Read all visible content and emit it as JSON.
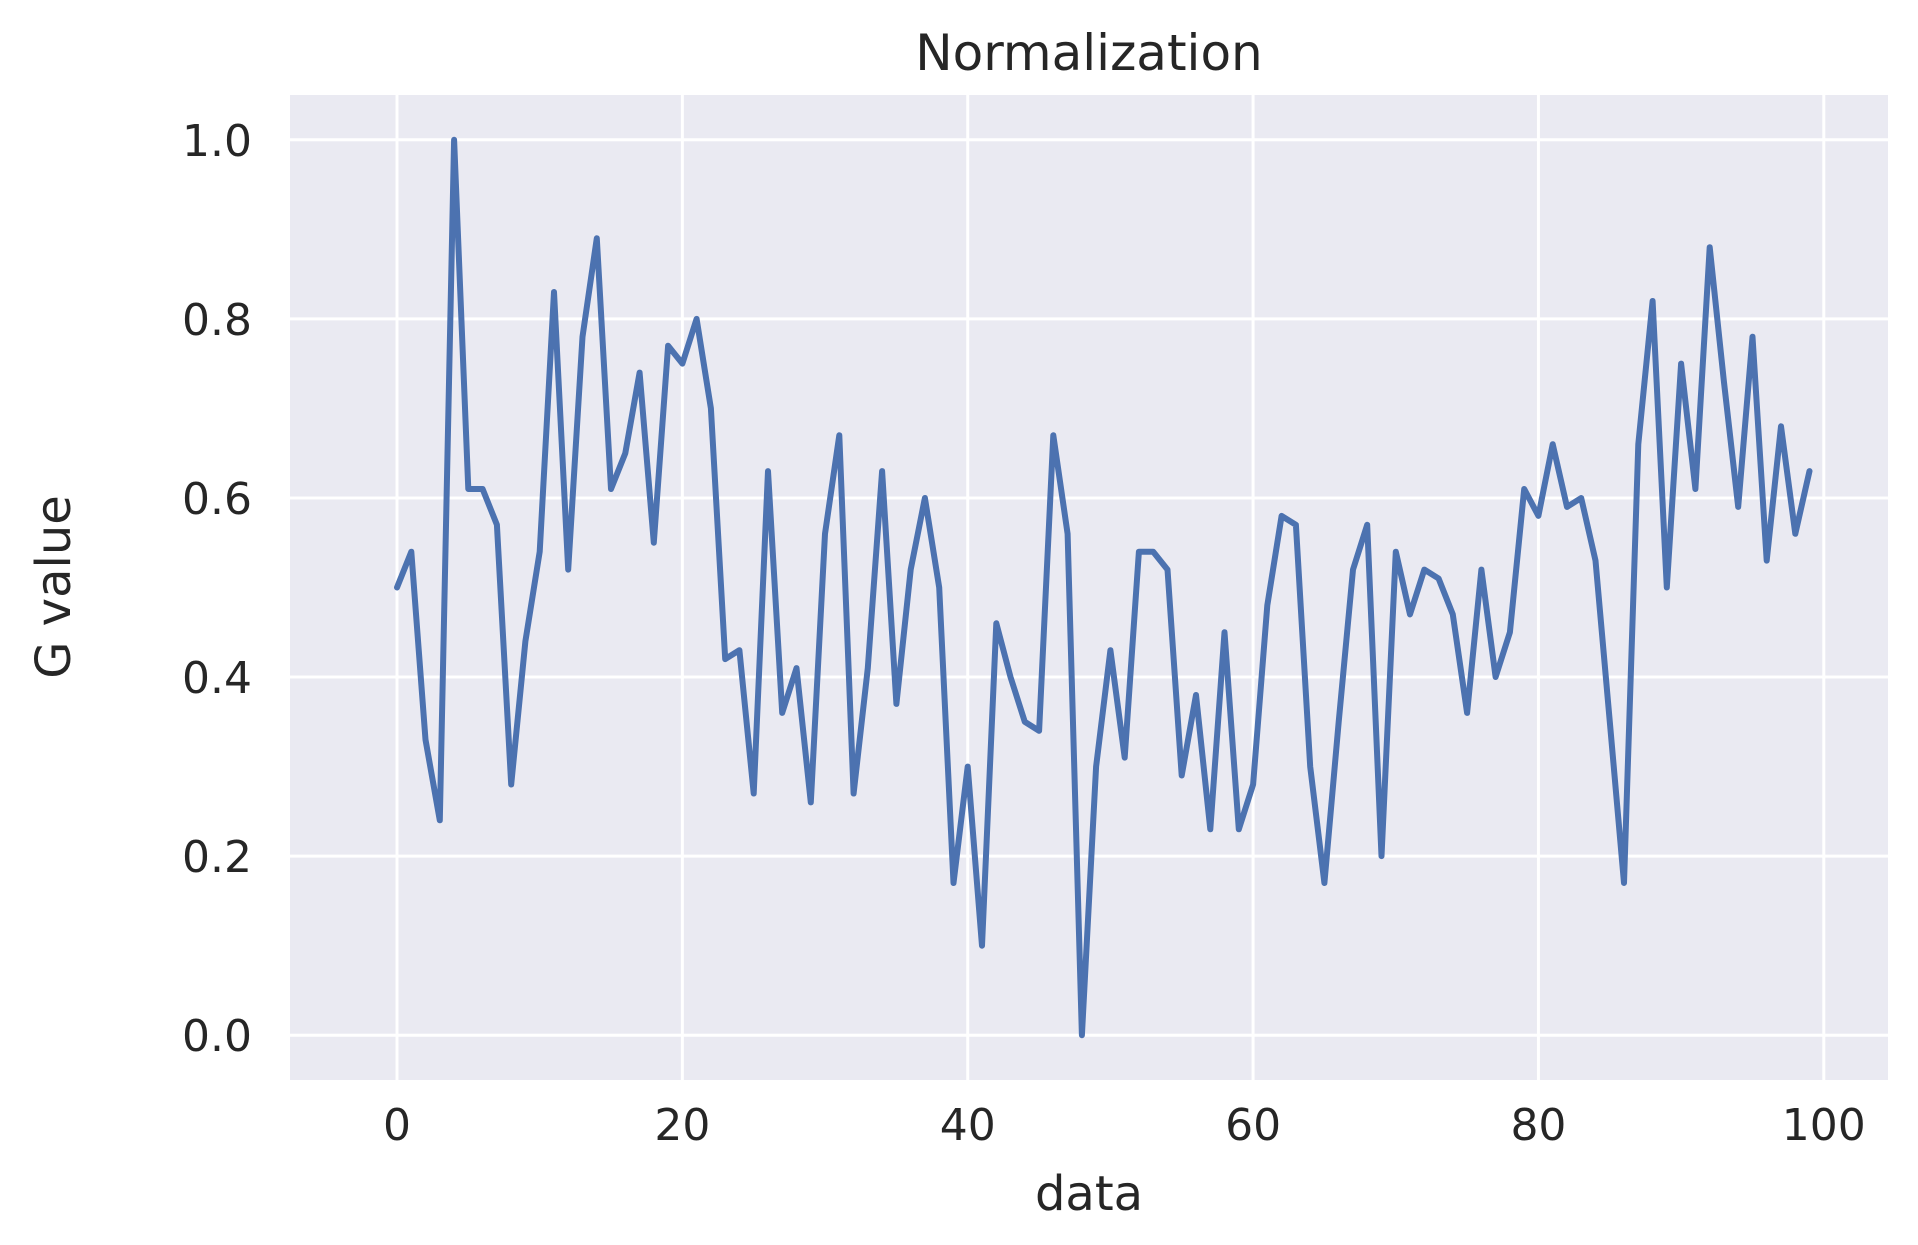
{
  "chart_data": {
    "type": "line",
    "title": "Normalization",
    "xlabel": "data",
    "ylabel": "G value",
    "xlim": [
      -7.5,
      104.5
    ],
    "ylim": [
      -0.05,
      1.05
    ],
    "xticks": [
      0,
      20,
      40,
      60,
      80,
      100
    ],
    "xtick_labels": [
      "0",
      "20",
      "40",
      "60",
      "80",
      "100"
    ],
    "yticks": [
      0.0,
      0.2,
      0.4,
      0.6,
      0.8,
      1.0
    ],
    "ytick_labels": [
      "0.0",
      "0.2",
      "0.4",
      "0.6",
      "0.8",
      "1.0"
    ],
    "grid": true,
    "background": "#eaeaf2",
    "grid_color": "#ffffff",
    "series": [
      {
        "color": "#4c72b0",
        "x": [
          0,
          1,
          2,
          3,
          4,
          5,
          6,
          7,
          8,
          9,
          10,
          11,
          12,
          13,
          14,
          15,
          16,
          17,
          18,
          19,
          20,
          21,
          22,
          23,
          24,
          25,
          26,
          27,
          28,
          29,
          30,
          31,
          32,
          33,
          34,
          35,
          36,
          37,
          38,
          39,
          40,
          41,
          42,
          43,
          44,
          45,
          46,
          47,
          48,
          49,
          50,
          51,
          52,
          53,
          54,
          55,
          56,
          57,
          58,
          59,
          60,
          61,
          62,
          63,
          64,
          65,
          66,
          67,
          68,
          69,
          70,
          71,
          72,
          73,
          74,
          75,
          76,
          77,
          78,
          79,
          80,
          81,
          82,
          83,
          84,
          85,
          86,
          87,
          88,
          89,
          90,
          91,
          92,
          93,
          94,
          95,
          96,
          97,
          98,
          99
        ],
        "values": [
          0.5,
          0.54,
          0.33,
          0.24,
          1.0,
          0.61,
          0.61,
          0.57,
          0.28,
          0.44,
          0.54,
          0.83,
          0.52,
          0.78,
          0.89,
          0.61,
          0.65,
          0.74,
          0.55,
          0.77,
          0.75,
          0.8,
          0.7,
          0.42,
          0.43,
          0.27,
          0.63,
          0.36,
          0.41,
          0.26,
          0.56,
          0.67,
          0.27,
          0.41,
          0.63,
          0.37,
          0.52,
          0.6,
          0.5,
          0.17,
          0.3,
          0.1,
          0.46,
          0.4,
          0.35,
          0.34,
          0.67,
          0.56,
          0.0,
          0.3,
          0.43,
          0.31,
          0.54,
          0.54,
          0.52,
          0.29,
          0.38,
          0.23,
          0.45,
          0.23,
          0.28,
          0.48,
          0.58,
          0.57,
          0.3,
          0.17,
          0.35,
          0.52,
          0.57,
          0.2,
          0.54,
          0.47,
          0.52,
          0.51,
          0.47,
          0.36,
          0.52,
          0.4,
          0.45,
          0.61,
          0.58,
          0.66,
          0.59,
          0.6,
          0.53,
          0.35,
          0.17,
          0.66,
          0.82,
          0.5,
          0.75,
          0.61,
          0.88,
          0.73,
          0.59,
          0.78,
          0.53,
          0.68,
          0.56,
          0.63
        ]
      }
    ]
  }
}
